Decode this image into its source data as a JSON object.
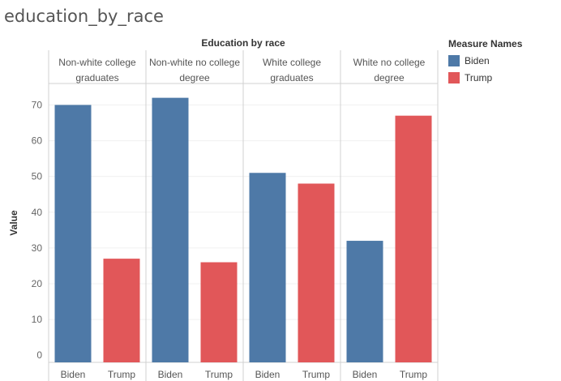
{
  "sheet_title": "education_by_race",
  "chart_data": {
    "type": "bar",
    "title": "Education by race",
    "ylabel": "Value",
    "xlabel": "",
    "ylim": [
      -2,
      76
    ],
    "yticks": [
      0,
      10,
      20,
      30,
      40,
      50,
      60,
      70
    ],
    "groups": [
      {
        "label_lines": [
          "Non-white college",
          "graduates"
        ]
      },
      {
        "label_lines": [
          "Non-white no college",
          "degree"
        ]
      },
      {
        "label_lines": [
          "White college",
          "graduates"
        ]
      },
      {
        "label_lines": [
          "White no college",
          "degree"
        ]
      }
    ],
    "measures": [
      "Biden",
      "Trump"
    ],
    "series": [
      {
        "name": "Biden",
        "color": "#4e79a7",
        "values": [
          70,
          72,
          51,
          32
        ]
      },
      {
        "name": "Trump",
        "color": "#e15759",
        "values": [
          27,
          26,
          48,
          67
        ]
      }
    ],
    "grid": true,
    "legend_position": "right"
  },
  "legend": {
    "title": "Measure Names",
    "items": [
      {
        "label": "Biden",
        "color": "#4e79a7"
      },
      {
        "label": "Trump",
        "color": "#e15759"
      }
    ]
  }
}
